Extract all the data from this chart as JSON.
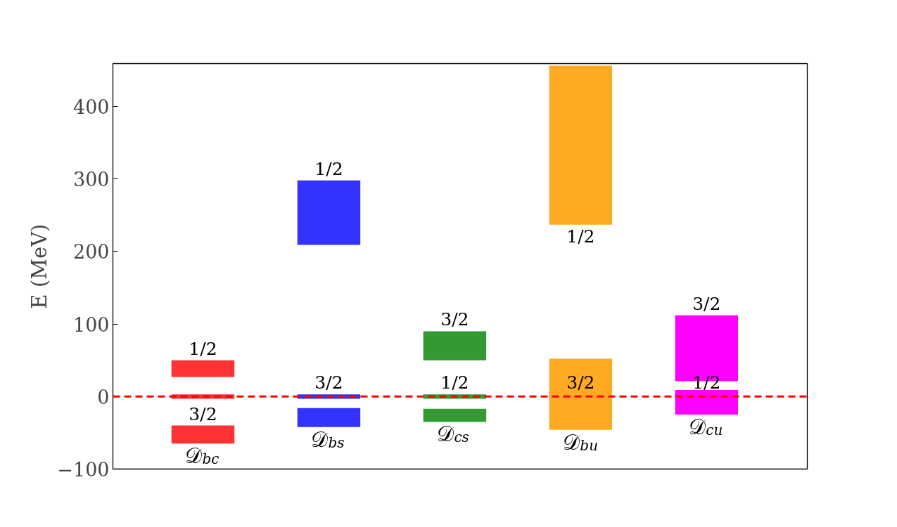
{
  "chart_data": {
    "type": "bar",
    "ylabel": "E (MeV)",
    "categories": [
      "𝒟$_{bc}$",
      "𝒟$_{bs}$",
      "𝒟$_{cs}$",
      "𝒟$_{bu}$",
      "𝒟$_{cu}$"
    ],
    "ylim": [
      -100,
      459
    ],
    "yticks": [
      {
        "value": -100,
        "label": "−100"
      },
      0,
      100,
      200,
      300,
      400
    ],
    "grid": false,
    "series": [
      {
        "colors": [
          "#ff3333",
          "#3333ff",
          "#339933",
          "#ffaa22",
          "#ff00ff"
        ],
        "base": [
          27,
          209,
          50,
          237,
          21
        ],
        "values": [
          23,
          89,
          40,
          219,
          91
        ]
      },
      {
        "colors": [
          "#ff3333",
          "#3333ff",
          "#339933",
          "#ffaa22",
          "#ff00ff"
        ],
        "base": [
          -65,
          -42,
          -35,
          -46,
          -25
        ],
        "values": [
          25,
          26,
          18,
          98,
          34
        ]
      },
      {
        "colors": [
          "#ff3333",
          "#3333ff",
          "#339933",
          "#ffaa22",
          "#ff00ff"
        ],
        "base": [
          -3,
          -3,
          -3,
          -3,
          -3
        ],
        "values": [
          6,
          6,
          6,
          6,
          6
        ]
      }
    ],
    "ref_lines": [
      {
        "axis": "y",
        "value": 0,
        "color": "#ff0000",
        "line_style": "dashed"
      }
    ],
    "annotations": [
      {
        "text": "1/2",
        "x": "𝒟$_{bc}$",
        "y": 50
      },
      {
        "text": "3/2",
        "x": "𝒟$_{bc}$",
        "y": -40
      },
      {
        "text": "1/2",
        "x": "𝒟$_{bs}$",
        "y": 298
      },
      {
        "text": "3/2",
        "x": "𝒟$_{bs}$",
        "y": 3
      },
      {
        "text": "3/2",
        "x": "𝒟$_{cs}$",
        "y": 90
      },
      {
        "text": "1/2",
        "x": "𝒟$_{cs}$",
        "y": 3
      },
      {
        "text": "1/2",
        "x": "𝒟$_{bu}$",
        "y": 237
      },
      {
        "text": "3/2",
        "x": "𝒟$_{bu}$",
        "y": 3
      },
      {
        "text": "3/2",
        "x": "𝒟$_{cu}$",
        "y": 112
      },
      {
        "text": "1/2",
        "x": "𝒟$_{cu}$",
        "y": 3
      }
    ]
  }
}
